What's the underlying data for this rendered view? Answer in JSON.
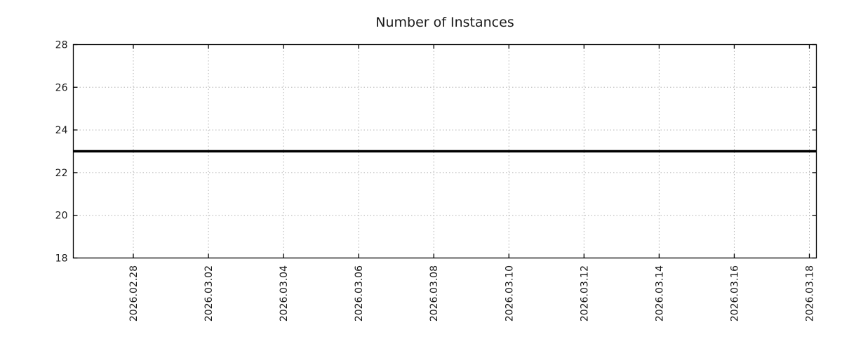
{
  "chart_data": {
    "type": "line",
    "title": "Number of Instances",
    "xlabel": "",
    "ylabel": "",
    "x_tick_labels": [
      "2026.02.28",
      "2026.03.02",
      "2026.03.04",
      "2026.03.06",
      "2026.03.08",
      "2026.03.10",
      "2026.03.12",
      "2026.03.14",
      "2026.03.16",
      "2026.03.18"
    ],
    "y_tick_labels": [
      "18",
      "20",
      "22",
      "24",
      "26",
      "28"
    ],
    "y_ticks": [
      18,
      20,
      22,
      24,
      26,
      28
    ],
    "ylim": [
      18,
      28
    ],
    "series": [
      {
        "name": "Number of Instances",
        "values": [
          23,
          23,
          23,
          23,
          23,
          23,
          23,
          23,
          23,
          23
        ],
        "constant_value": 23,
        "color": "#000000",
        "line_width": 3.5,
        "note": "flat horizontal line spanning the full plot width"
      }
    ],
    "grid": true,
    "grid_style": "dotted",
    "grid_color": "#b0b0b0",
    "legend_position": "none",
    "border_color": "#000000",
    "background_color": "#ffffff",
    "text_color": "#1a1a1a",
    "x_tick_rotation_deg": 90
  }
}
